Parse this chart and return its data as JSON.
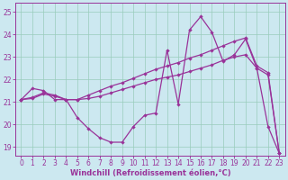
{
  "xlabel": "Windchill (Refroidissement éolien,°C)",
  "background_color": "#cce8f0",
  "grid_color": "#99ccbb",
  "line_color": "#993399",
  "x_ticks": [
    0,
    1,
    2,
    3,
    4,
    5,
    6,
    7,
    8,
    9,
    10,
    11,
    12,
    13,
    14,
    15,
    16,
    17,
    18,
    19,
    20,
    21,
    22,
    23
  ],
  "y_ticks": [
    19,
    20,
    21,
    22,
    23,
    24,
    25
  ],
  "ylim": [
    18.6,
    25.4
  ],
  "xlim": [
    -0.5,
    23.5
  ],
  "line1_x": [
    0,
    1,
    2,
    3,
    4,
    5,
    6,
    7,
    8,
    9,
    10,
    11,
    12,
    13,
    14,
    15,
    16,
    17,
    18,
    19,
    20,
    21,
    22,
    23
  ],
  "line1_y": [
    21.1,
    21.6,
    21.5,
    21.1,
    21.1,
    20.3,
    19.8,
    19.4,
    19.2,
    19.2,
    19.9,
    20.4,
    20.5,
    23.3,
    20.9,
    24.2,
    24.8,
    24.1,
    22.8,
    23.1,
    23.8,
    22.5,
    19.9,
    18.7
  ],
  "line2_x": [
    0,
    1,
    2,
    3,
    4,
    5,
    6,
    7,
    8,
    9,
    10,
    11,
    12,
    13,
    14,
    15,
    16,
    17,
    18,
    19,
    20,
    21,
    22,
    23
  ],
  "line2_y": [
    21.1,
    21.2,
    21.4,
    21.3,
    21.1,
    21.1,
    21.3,
    21.5,
    21.7,
    21.85,
    22.05,
    22.25,
    22.45,
    22.6,
    22.75,
    22.95,
    23.1,
    23.3,
    23.5,
    23.7,
    23.85,
    22.6,
    22.3,
    18.7
  ],
  "line3_x": [
    0,
    1,
    2,
    3,
    4,
    5,
    6,
    7,
    8,
    9,
    10,
    11,
    12,
    13,
    14,
    15,
    16,
    17,
    18,
    19,
    20,
    21,
    22,
    23
  ],
  "line3_y": [
    21.1,
    21.15,
    21.35,
    21.25,
    21.1,
    21.1,
    21.15,
    21.25,
    21.4,
    21.55,
    21.7,
    21.85,
    22.0,
    22.1,
    22.2,
    22.35,
    22.5,
    22.65,
    22.85,
    23.0,
    23.1,
    22.5,
    22.2,
    18.7
  ],
  "tick_fontsize": 5.5,
  "xlabel_fontsize": 6.0,
  "marker_size": 2.2,
  "line_width": 0.9
}
